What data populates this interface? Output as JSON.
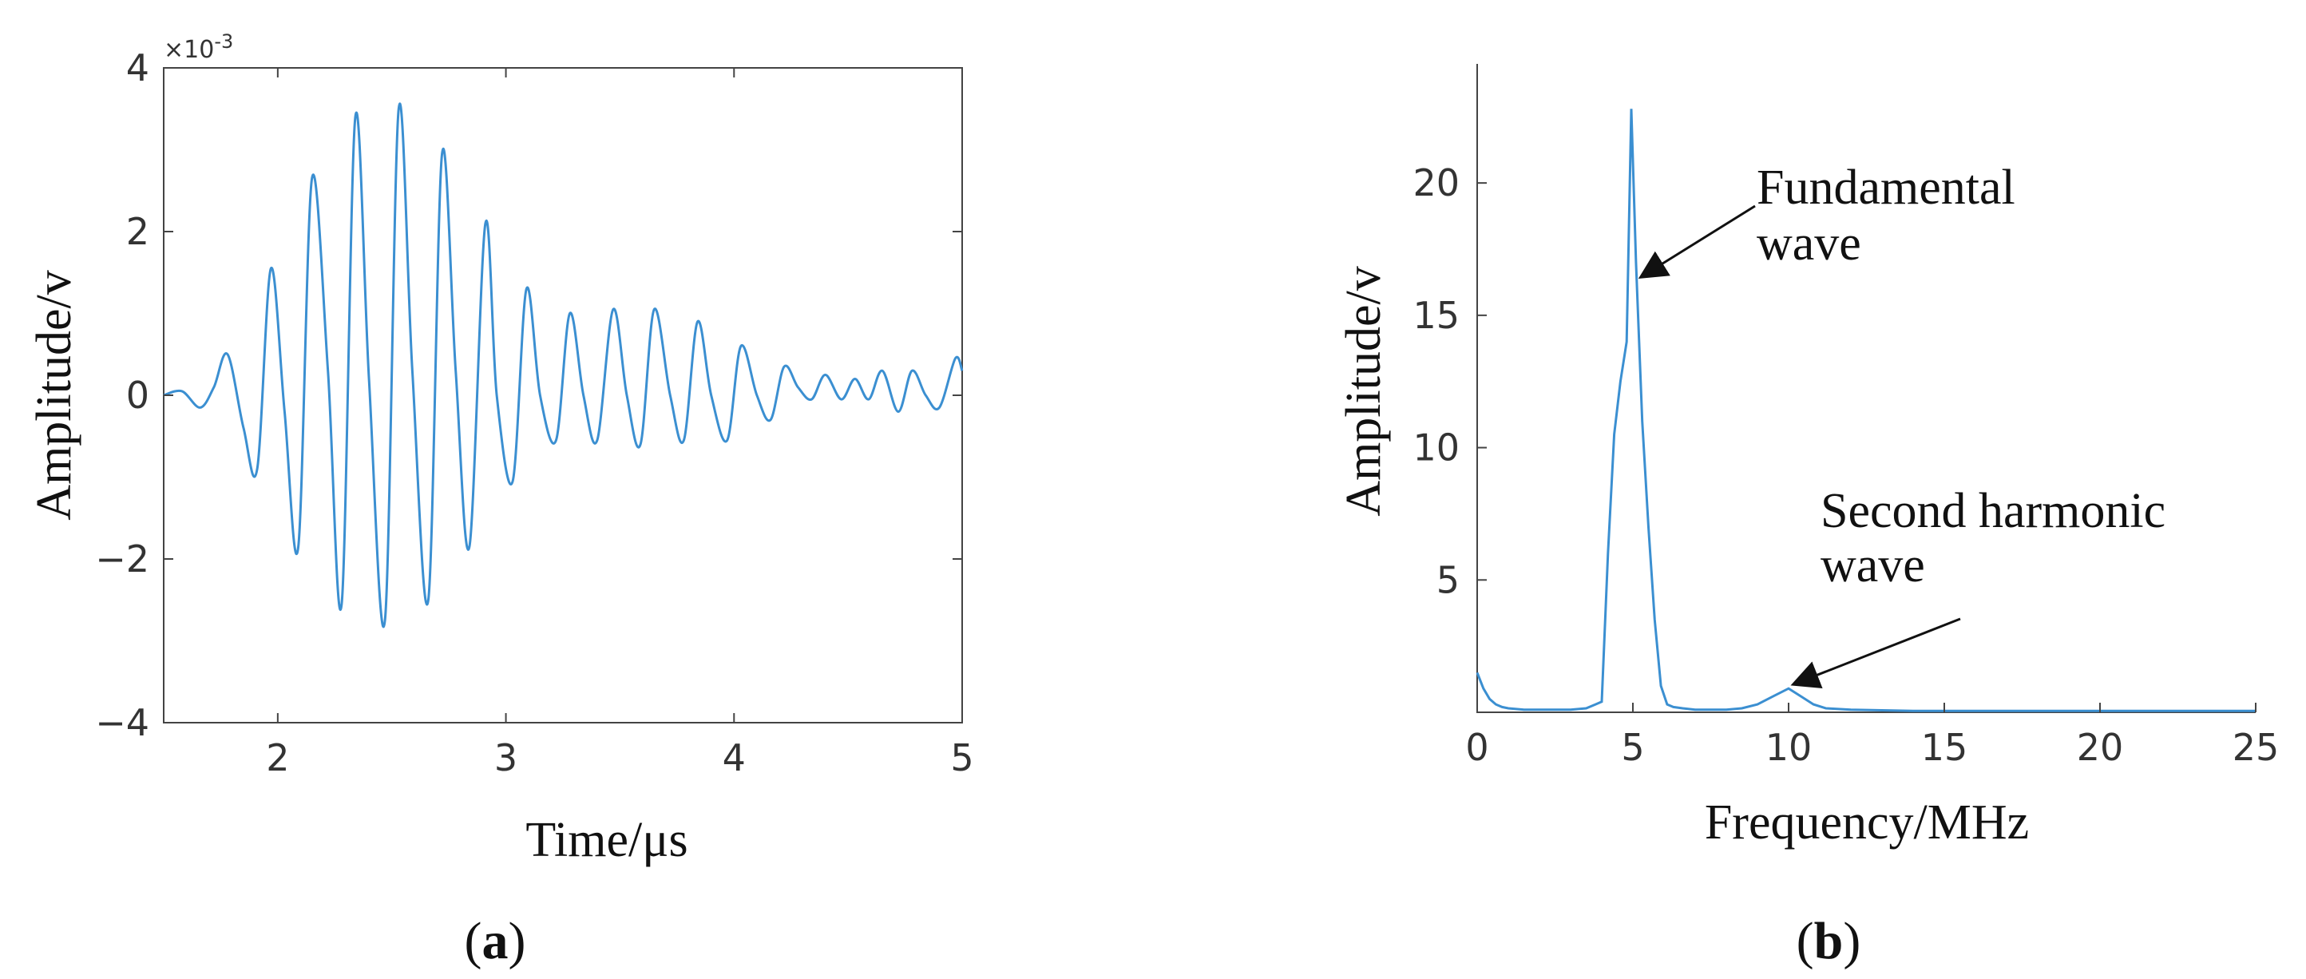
{
  "chart_data": [
    {
      "type": "line",
      "panel_label": "(a)",
      "panel_letter": "a",
      "xlabel": "Time/μs",
      "ylabel": "Amplitude/v",
      "y_scale_note": "×10-3",
      "y_scale_base": "×10",
      "y_scale_exp": "-3",
      "xlim": [
        1.5,
        5
      ],
      "ylim": [
        -4,
        4
      ],
      "xticks": [
        2,
        3,
        4,
        5
      ],
      "xtick_labels": [
        "2",
        "3",
        "4",
        "5"
      ],
      "yticks": [
        -4,
        -2,
        0,
        2,
        4
      ],
      "ytick_labels": [
        "−4",
        "−2",
        "0",
        "2",
        "4"
      ],
      "grid": false,
      "line_color": "#3b8fd1",
      "series": [
        {
          "x": [
            1.5,
            1.58,
            1.66,
            1.72,
            1.78,
            1.85,
            1.91,
            1.97,
            2.03,
            2.09,
            2.15,
            2.22,
            2.28,
            2.34,
            2.4,
            2.47,
            2.53,
            2.59,
            2.66,
            2.72,
            2.78,
            2.84,
            2.91,
            2.96,
            3.03,
            3.09,
            3.15,
            3.22,
            3.28,
            3.34,
            3.4,
            3.47,
            3.53,
            3.59,
            3.65,
            3.72,
            3.78,
            3.84,
            3.9,
            3.97,
            4.03,
            4.1,
            4.16,
            4.22,
            4.28,
            4.34,
            4.4,
            4.47,
            4.53,
            4.59,
            4.65,
            4.72,
            4.78,
            4.84,
            4.9,
            4.97,
            5.0
          ],
          "y": [
            0.0,
            0.05,
            -0.15,
            0.1,
            0.5,
            -0.4,
            -0.9,
            1.55,
            -0.2,
            -1.85,
            2.65,
            0.3,
            -2.55,
            3.4,
            0.2,
            -2.75,
            3.5,
            0.3,
            -2.5,
            2.95,
            0.3,
            -1.85,
            2.1,
            0.0,
            -1.05,
            1.3,
            0.0,
            -0.55,
            1.0,
            0.0,
            -0.55,
            1.05,
            0.0,
            -0.6,
            1.05,
            0.0,
            -0.55,
            0.9,
            0.0,
            -0.55,
            0.6,
            0.0,
            -0.3,
            0.35,
            0.1,
            -0.05,
            0.25,
            -0.05,
            0.2,
            -0.05,
            0.3,
            -0.2,
            0.3,
            0.0,
            -0.15,
            0.45,
            0.3
          ]
        }
      ]
    },
    {
      "type": "line",
      "panel_label": "(b)",
      "panel_letter": "b",
      "xlabel": "Frequency/MHz",
      "ylabel": "Amplitude/v",
      "xlim": [
        0,
        25
      ],
      "ylim": [
        0,
        24.5
      ],
      "xticks": [
        0,
        5,
        10,
        15,
        20,
        25
      ],
      "xtick_labels": [
        "0",
        "5",
        "10",
        "15",
        "20",
        "25"
      ],
      "yticks": [
        5,
        10,
        15,
        20
      ],
      "ytick_labels": [
        "5",
        "10",
        "15",
        "20"
      ],
      "grid": false,
      "line_color": "#3b8fd1",
      "series": [
        {
          "x": [
            0,
            0.2,
            0.4,
            0.6,
            0.8,
            1.0,
            1.5,
            2,
            2.5,
            3,
            3.5,
            3.8,
            4.0,
            4.2,
            4.4,
            4.6,
            4.8,
            4.95,
            5.1,
            5.3,
            5.5,
            5.7,
            5.9,
            6.1,
            6.3,
            6.6,
            7,
            7.5,
            8,
            8.5,
            9,
            9.5,
            10,
            10.4,
            10.8,
            11.2,
            12,
            14,
            16,
            18,
            20,
            22,
            25
          ],
          "y": [
            1.5,
            0.9,
            0.5,
            0.3,
            0.2,
            0.15,
            0.1,
            0.1,
            0.1,
            0.1,
            0.15,
            0.3,
            0.4,
            6.0,
            10.5,
            12.5,
            14.0,
            22.8,
            17.0,
            11.0,
            7.0,
            3.5,
            1.0,
            0.3,
            0.2,
            0.15,
            0.1,
            0.1,
            0.1,
            0.15,
            0.3,
            0.6,
            0.9,
            0.6,
            0.3,
            0.15,
            0.1,
            0.05,
            0.05,
            0.05,
            0.05,
            0.05,
            0.05
          ]
        }
      ],
      "annotations": [
        {
          "lines": [
            "Fundamental",
            "wave"
          ],
          "point": [
            5.1,
            16.3
          ]
        },
        {
          "lines": [
            "Second harmonic",
            "wave"
          ],
          "point": [
            9.9,
            0.9
          ]
        }
      ]
    }
  ]
}
